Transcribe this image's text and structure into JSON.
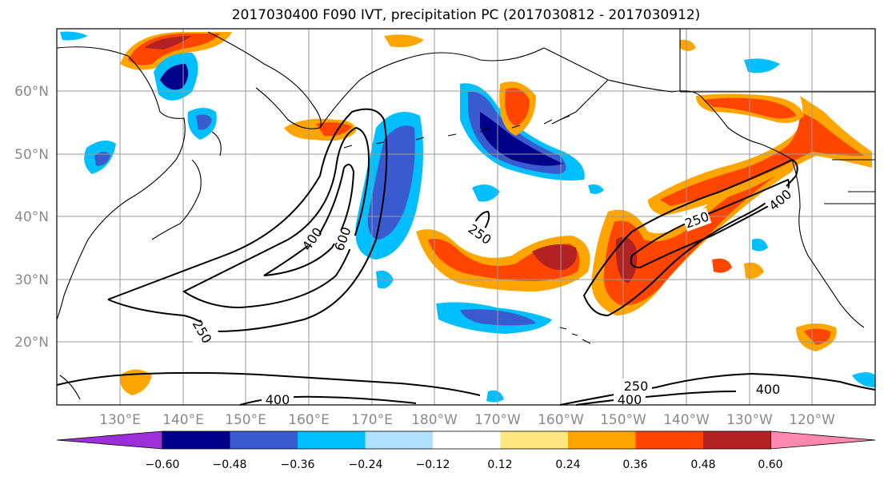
{
  "title": "2017030400 F090 IVT, precipitation PC (2017030812 - 2017030912)",
  "map": {
    "lat_labels": [
      "60°N",
      "50°N",
      "40°N",
      "30°N",
      "20°N"
    ],
    "lon_labels": [
      "130°E",
      "140°E",
      "150°E",
      "160°E",
      "170°E",
      "180°W",
      "170°W",
      "160°W",
      "150°W",
      "140°W",
      "130°W",
      "120°W"
    ],
    "ivt_contour_labels": [
      "600",
      "400",
      "250",
      "250",
      "250",
      "400",
      "250",
      "400",
      "400",
      "400"
    ]
  },
  "colorbar": {
    "ticks": [
      "−0.60",
      "−0.48",
      "−0.36",
      "−0.24",
      "−0.12",
      "0.12",
      "0.24",
      "0.36",
      "0.48",
      "0.60"
    ],
    "colors": [
      "#9b30d9",
      "#00008b",
      "#3a5bd0",
      "#00bfff",
      "#b0e2ff",
      "#ffffff",
      "#ffe680",
      "#ffa500",
      "#ff4500",
      "#b22222",
      "#ff88b0"
    ]
  },
  "colors": {
    "negative_strong": "#00008b",
    "negative_mid": "#3a5bd0",
    "negative_weak": "#00bfff",
    "negative_faint": "#b0e2ff",
    "positive_faint": "#ffe680",
    "positive_weak": "#ffa500",
    "positive_mid": "#ff4500",
    "positive_strong": "#b22222",
    "positive_max": "#ff88b0"
  }
}
